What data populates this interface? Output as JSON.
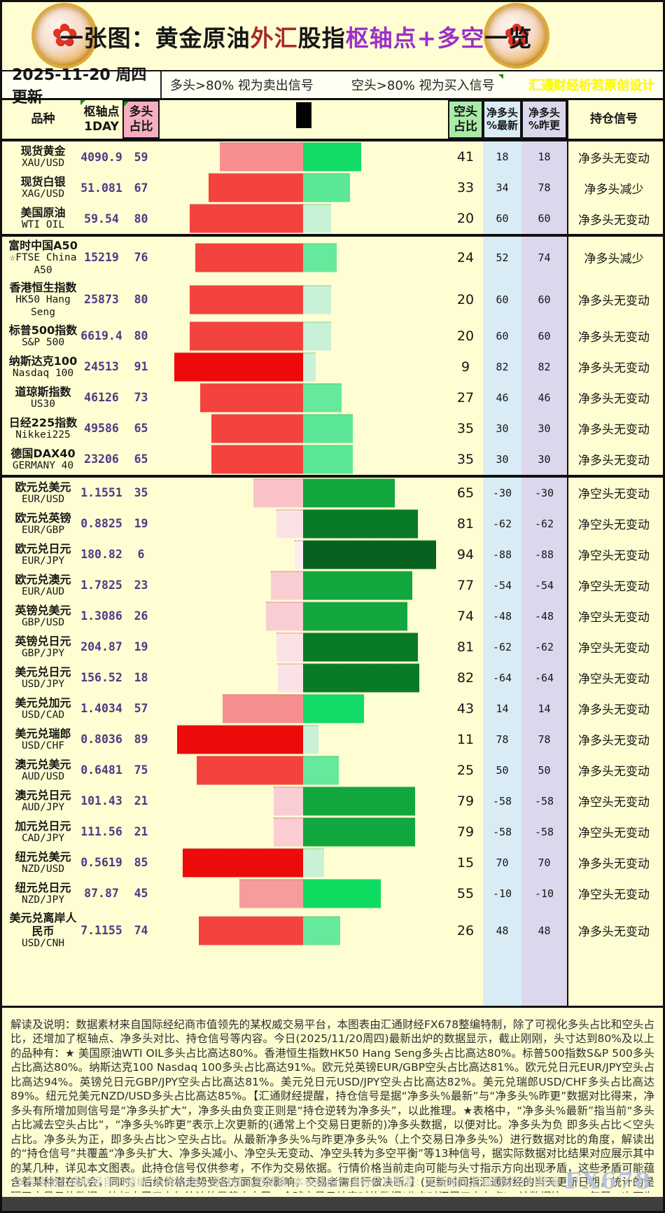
{
  "title": {
    "segments": [
      {
        "text": "一张图：黄金原油",
        "color": "#161616"
      },
      {
        "text": "外汇",
        "color": "#A52A2A"
      },
      {
        "text": "股指",
        "color": "#161616"
      },
      {
        "text": "枢轴点+多空",
        "color": "#9B30C8"
      },
      {
        "text": "一览",
        "color": "#161616"
      }
    ]
  },
  "date_label": "2025-11-20 周四更新",
  "legend": {
    "long_rule": "多头>80% 视为卖出信号",
    "short_rule": "空头>80% 视为买入信号"
  },
  "design_credit": "汇通财经析若原创设计",
  "columns": {
    "product": "品种",
    "pivot": "枢轴点",
    "pivot_sub": "1DAY",
    "long": "多头",
    "long_sub": "占比",
    "short": "空头",
    "short_sub": "占比",
    "net_latest": "净多头",
    "net_latest_sub": "%最新",
    "net_prev": "净多头",
    "net_prev_sub": "%昨更",
    "signal": "持仓信号"
  },
  "colors": {
    "page_bg": "#FEFED2",
    "pink_header": "#F7AFBF",
    "green_header": "#A9EBA6",
    "blue_band": "#D9ECF6",
    "lavender_band": "#DCD7ED",
    "value_purple": "#4E3A87",
    "scale_colors": [
      "#CC0101",
      "#EE3B3B",
      "#F28181",
      "#F5B5B8",
      "#FADCE0",
      "#C9F0D5",
      "#62E593",
      "#12DB5F",
      "#0EA43C",
      "#0A6B25"
    ]
  },
  "rows": [
    {
      "cn": "现货黄金",
      "en": "XAU/USD",
      "pivot": "4090.9",
      "long": 59,
      "short": 41,
      "net_latest": 18,
      "net_prev": 18,
      "signal": "净多头无变动",
      "divider_after": false
    },
    {
      "cn": "现货白银",
      "en": "XAG/USD",
      "pivot": "51.081",
      "long": 67,
      "short": 33,
      "net_latest": 34,
      "net_prev": 78,
      "signal": "净多头减少",
      "divider_after": false
    },
    {
      "cn": "美国原油",
      "en": "WTI OIL",
      "pivot": "59.54",
      "long": 80,
      "short": 20,
      "net_latest": 60,
      "net_prev": 60,
      "signal": "净多头无变动",
      "divider_after": true
    },
    {
      "cn": "富时中国A50",
      "en": "☆FTSE China A50",
      "pivot": "15219",
      "long": 76,
      "short": 24,
      "net_latest": 52,
      "net_prev": 74,
      "signal": "净多头减少",
      "divider_after": false
    },
    {
      "cn": "香港恒生指数",
      "en": "HK50 Hang Seng",
      "pivot": "25873",
      "long": 80,
      "short": 20,
      "net_latest": 60,
      "net_prev": 60,
      "signal": "净多头无变动",
      "divider_after": false
    },
    {
      "cn": "标普500指数",
      "en": "S&P 500",
      "pivot": "6619.4",
      "long": 80,
      "short": 20,
      "net_latest": 60,
      "net_prev": 60,
      "signal": "净多头无变动",
      "divider_after": false
    },
    {
      "cn": "纳斯达克100",
      "en": "Nasdaq 100",
      "pivot": "24513",
      "long": 91,
      "short": 9,
      "net_latest": 82,
      "net_prev": 82,
      "signal": "净多头无变动",
      "divider_after": false
    },
    {
      "cn": "道琼斯指数",
      "en": "US30",
      "pivot": "46126",
      "long": 73,
      "short": 27,
      "net_latest": 46,
      "net_prev": 46,
      "signal": "净多头无变动",
      "divider_after": false
    },
    {
      "cn": "日经225指数",
      "en": "Nikkei225",
      "pivot": "49586",
      "long": 65,
      "short": 35,
      "net_latest": 30,
      "net_prev": 30,
      "signal": "净多头无变动",
      "divider_after": false
    },
    {
      "cn": "德国DAX40",
      "en": "GERMANY 40",
      "pivot": "23206",
      "long": 65,
      "short": 35,
      "net_latest": 30,
      "net_prev": 30,
      "signal": "净多头无变动",
      "divider_after": true
    },
    {
      "cn": "欧元兑美元",
      "en": "EUR/USD",
      "pivot": "1.1551",
      "long": 35,
      "short": 65,
      "net_latest": -30,
      "net_prev": -30,
      "signal": "净空头无变动",
      "divider_after": false
    },
    {
      "cn": "欧元兑英镑",
      "en": "EUR/GBP",
      "pivot": "0.8825",
      "long": 19,
      "short": 81,
      "net_latest": -62,
      "net_prev": -62,
      "signal": "净空头无变动",
      "divider_after": false
    },
    {
      "cn": "欧元兑日元",
      "en": "EUR/JPY",
      "pivot": "180.82",
      "long": 6,
      "short": 94,
      "net_latest": -88,
      "net_prev": -88,
      "signal": "净空头无变动",
      "divider_after": false
    },
    {
      "cn": "欧元兑澳元",
      "en": "EUR/AUD",
      "pivot": "1.7825",
      "long": 23,
      "short": 77,
      "net_latest": -54,
      "net_prev": -54,
      "signal": "净空头无变动",
      "divider_after": false
    },
    {
      "cn": "英镑兑美元",
      "en": "GBP/USD",
      "pivot": "1.3086",
      "long": 26,
      "short": 74,
      "net_latest": -48,
      "net_prev": -48,
      "signal": "净空头无变动",
      "divider_after": false
    },
    {
      "cn": "英镑兑日元",
      "en": "GBP/JPY",
      "pivot": "204.87",
      "long": 19,
      "short": 81,
      "net_latest": -62,
      "net_prev": -62,
      "signal": "净空头无变动",
      "divider_after": false
    },
    {
      "cn": "美元兑日元",
      "en": "USD/JPY",
      "pivot": "156.52",
      "long": 18,
      "short": 82,
      "net_latest": -64,
      "net_prev": -64,
      "signal": "净空头无变动",
      "divider_after": false
    },
    {
      "cn": "美元兑加元",
      "en": "USD/CAD",
      "pivot": "1.4034",
      "long": 57,
      "short": 43,
      "net_latest": 14,
      "net_prev": 14,
      "signal": "净多头无变动",
      "divider_after": false
    },
    {
      "cn": "美元兑瑞郎",
      "en": "USD/CHF",
      "pivot": "0.8036",
      "long": 89,
      "short": 11,
      "net_latest": 78,
      "net_prev": 78,
      "signal": "净多头无变动",
      "divider_after": false
    },
    {
      "cn": "澳元兑美元",
      "en": "AUD/USD",
      "pivot": "0.6481",
      "long": 75,
      "short": 25,
      "net_latest": 50,
      "net_prev": 50,
      "signal": "净多头无变动",
      "divider_after": false
    },
    {
      "cn": "澳元兑日元",
      "en": "AUD/JPY",
      "pivot": "101.43",
      "long": 21,
      "short": 79,
      "net_latest": -58,
      "net_prev": -58,
      "signal": "净空头无变动",
      "divider_after": false
    },
    {
      "cn": "加元兑日元",
      "en": "CAD/JPY",
      "pivot": "111.56",
      "long": 21,
      "short": 79,
      "net_latest": -58,
      "net_prev": -58,
      "signal": "净空头无变动",
      "divider_after": false
    },
    {
      "cn": "纽元兑美元",
      "en": "NZD/USD",
      "pivot": "0.5619",
      "long": 85,
      "short": 15,
      "net_latest": 70,
      "net_prev": 70,
      "signal": "净多头无变动",
      "divider_after": false
    },
    {
      "cn": "纽元兑日元",
      "en": "NZD/JPY",
      "pivot": "87.87",
      "long": 45,
      "short": 55,
      "net_latest": -10,
      "net_prev": -10,
      "signal": "净空头无变动",
      "divider_after": false
    },
    {
      "cn": "美元兑离岸人民币",
      "en": "USD/CNH",
      "pivot": "7.1155",
      "long": 74,
      "short": 26,
      "net_latest": 48,
      "net_prev": 48,
      "signal": "净多头无变动",
      "divider_after": false
    }
  ],
  "chart_data": {
    "type": "bar",
    "title": "一张图：黄金原油外汇股指枢轴点+多空一览",
    "subtitle": "2025-11-20 周四更新",
    "categories": [
      "XAU/USD",
      "XAG/USD",
      "WTI OIL",
      "FTSE China A50",
      "HK50 Hang Seng",
      "S&P 500",
      "Nasdaq 100",
      "US30",
      "Nikkei225",
      "GERMANY 40",
      "EUR/USD",
      "EUR/GBP",
      "EUR/JPY",
      "EUR/AUD",
      "GBP/USD",
      "GBP/JPY",
      "USD/JPY",
      "USD/CAD",
      "USD/CHF",
      "AUD/USD",
      "AUD/JPY",
      "CAD/JPY",
      "NZD/USD",
      "NZD/JPY",
      "USD/CNH"
    ],
    "series": [
      {
        "name": "多头占比",
        "values": [
          59,
          67,
          80,
          76,
          80,
          80,
          91,
          73,
          65,
          65,
          35,
          19,
          6,
          23,
          26,
          19,
          18,
          57,
          89,
          75,
          21,
          21,
          85,
          45,
          74
        ]
      },
      {
        "name": "空头占比",
        "values": [
          41,
          33,
          20,
          24,
          20,
          20,
          9,
          27,
          35,
          35,
          65,
          81,
          94,
          77,
          74,
          81,
          82,
          43,
          11,
          25,
          79,
          79,
          15,
          55,
          26
        ]
      },
      {
        "name": "净多头%最新",
        "values": [
          18,
          34,
          60,
          52,
          60,
          60,
          82,
          46,
          30,
          30,
          -30,
          -62,
          -88,
          -54,
          -48,
          -62,
          -64,
          14,
          78,
          50,
          -58,
          -58,
          70,
          -10,
          48
        ]
      },
      {
        "name": "净多头%昨更",
        "values": [
          18,
          78,
          60,
          74,
          60,
          60,
          82,
          46,
          30,
          30,
          -30,
          -62,
          -88,
          -54,
          -48,
          -62,
          -64,
          14,
          78,
          50,
          -58,
          -58,
          70,
          -10,
          48
        ]
      },
      {
        "name": "枢轴点1DAY",
        "values": [
          4090.9,
          51.081,
          59.54,
          15219,
          25873,
          6619.4,
          24513,
          46126,
          49586,
          23206,
          1.1551,
          0.8825,
          180.82,
          1.7825,
          1.3086,
          204.87,
          156.52,
          1.4034,
          0.8036,
          0.6481,
          101.43,
          111.56,
          0.5619,
          87.87,
          7.1155
        ]
      }
    ],
    "xlim": [
      -100,
      100
    ],
    "orientation": "horizontal-diverging",
    "legend_position": "top"
  },
  "footer": {
    "note": "解读及说明：数据素材来自国际经纪商市值领先的某权威交易平台，本图表由汇通财经FX678整编特制，除了可视化多头占比和空头占比，还增加了枢轴点、净多头对比、持仓信号等内容。今日(2025/11/20周四)最新出炉的数据显示，截止刚刚，头寸达到80%及以上的品种有：★ 美国原油WTI OIL多头占比高达80%。香港恒生指数HK50 Hang Seng多头占比高达80%。标普500指数S&P 500多头占比高达80%。纳斯达克100 Nasdaq 100多头占比高达91%。欧元兑英镑EUR/GBP空头占比高达81%。欧元兑日元EUR/JPY空头占比高达94%。英镑兑日元GBP/JPY空头占比高达81%。美元兑日元USD/JPY空头占比高达82%。美元兑瑞郎USD/CHF多头占比高达89%。纽元兑美元NZD/USD多头占比高达85%。【汇通财经提醒，持仓信号是据“净多头%最新”与“净多头%昨更”数据对比得来，净多头有所增加则信号是“净多头扩大”，净多头由负变正则是“持仓逆转为净多头”，以此推理。★表格中，“净多头%最新”指当前“多头占比减去空头占比”，“净多头%昨更”表示上次更新的(通常上个交易日更新的)净多头数据，以便对比。净多头为负 即多头占比＜空头占比。净多头为正，即多头占比＞空头占比。从最新净多头%与昨更净多头%（上个交易日净多头%）进行数据对比的角度，解读出的“持仓信号”共覆盖“净多头扩大、净多头减小、净空头无变动、净空头转为多空平衡”等13种信号，据实际数据对比结果对应展示其中的某几种，详见本文图表。此持仓信号仅供参考，不作为交易依据。行情价格当前走向可能与头寸指示方向出现矛盾，这些矛盾可能蕴含着某种潜在机会，同时，后续价格走势受各方面复杂影响，交易者需自行做决断。】(更新时间指汇通财经的当天更新日期，统计的是隔天交易日的数据，比如本周三上午统计的是截止本周二全球交易日结束时的数据(北京时间周三六七点)。该数据比CFTC每周一次更为及时，但样本数据量逊于CFTC持仓报告。)",
    "credits": [
      "本表格由汇通财经自制整编",
      "本表格由汇通财经自制整编",
      "本表格由汇通财经自制整:",
      "本表格由汇通财经自制整编"
    ],
    "watermark": "FX678"
  }
}
